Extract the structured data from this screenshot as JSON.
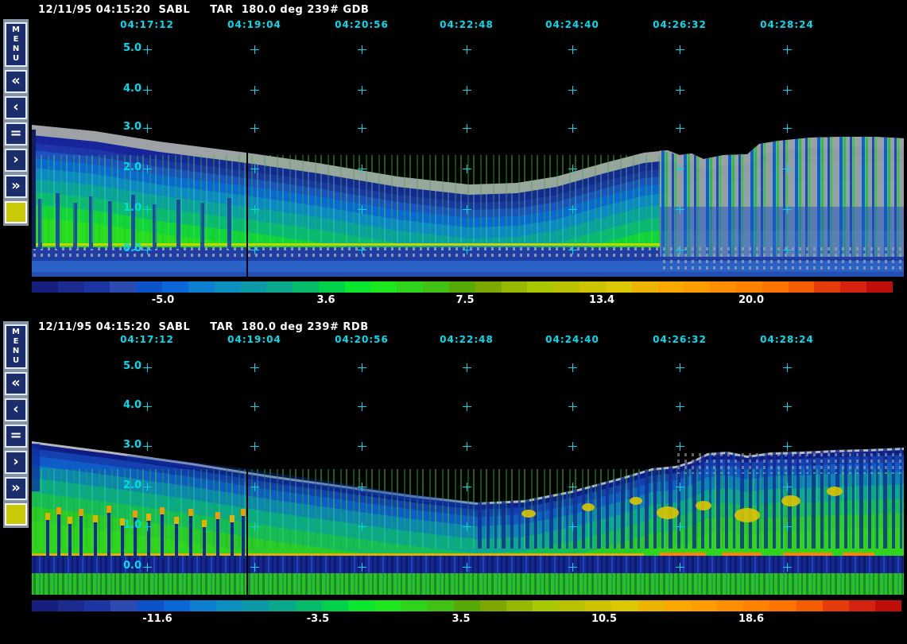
{
  "colors": {
    "accent_cyan": "#00dcee",
    "label_white": "#ffffff",
    "sidebar_gray": "#8494a5",
    "button_navy": "#1b2e6b",
    "swatch_yellow": "#c9c908",
    "cursor_black": "#000000"
  },
  "palette": [
    "#161f7d",
    "#1b2b8f",
    "#1d35a2",
    "#2c4bb0",
    "#0c52c8",
    "#0b66d8",
    "#0c7fd0",
    "#0d8fc0",
    "#0d9aa8",
    "#0aa88c",
    "#06bb6a",
    "#00d14a",
    "#0ae52e",
    "#1ce61c",
    "#2ed41c",
    "#3fc214",
    "#57aa06",
    "#7ca800",
    "#96b800",
    "#aac800",
    "#bac200",
    "#ccc400",
    "#dcc800",
    "#ecb400",
    "#f8a800",
    "#ff9c00",
    "#ff8f00",
    "#ff8200",
    "#ff7400",
    "#f55e00",
    "#e43c0a",
    "#d62310",
    "#c00f0a"
  ],
  "sidebar_buttons": [
    {
      "name": "menu",
      "label": "MENU",
      "type": "text"
    },
    {
      "name": "fast-rewind",
      "glyph": "«",
      "type": "glyph"
    },
    {
      "name": "step-back",
      "glyph": "‹",
      "type": "glyph"
    },
    {
      "name": "pause",
      "glyph": "=",
      "type": "glyph"
    },
    {
      "name": "step-forward",
      "glyph": "›",
      "type": "glyph"
    },
    {
      "name": "fast-forward",
      "glyph": "»",
      "type": "glyph"
    },
    {
      "name": "color-swatch",
      "type": "swatch"
    }
  ],
  "panels": [
    {
      "id": "gdb",
      "title": "12/11/95 04:15:20  SABL     TAR  180.0 deg 239# GDB",
      "time_labels": [
        "04:17:12",
        "04:19:04",
        "04:20:56",
        "04:22:48",
        "04:24:40",
        "04:26:32",
        "04:28:24"
      ],
      "altitude_labels": [
        "5.0",
        "4.0",
        "3.0",
        "2.0",
        "1.0",
        "0.0"
      ],
      "colorbar_labels": [
        "-5.0",
        "3.6",
        "7.5",
        "13.4",
        "20.0"
      ]
    },
    {
      "id": "rdb",
      "title": "12/11/95 04:15:20  SABL     TAR  180.0 deg 239# RDB",
      "time_labels": [
        "04:17:12",
        "04:19:04",
        "04:20:56",
        "04:22:48",
        "04:24:40",
        "04:26:32",
        "04:28:24"
      ],
      "altitude_labels": [
        "5.0",
        "4.0",
        "3.0",
        "2.0",
        "1.0",
        "0.0"
      ],
      "colorbar_labels": [
        "-11.6",
        "-3.5",
        "3.5",
        "10.5",
        "18.6"
      ]
    }
  ]
}
